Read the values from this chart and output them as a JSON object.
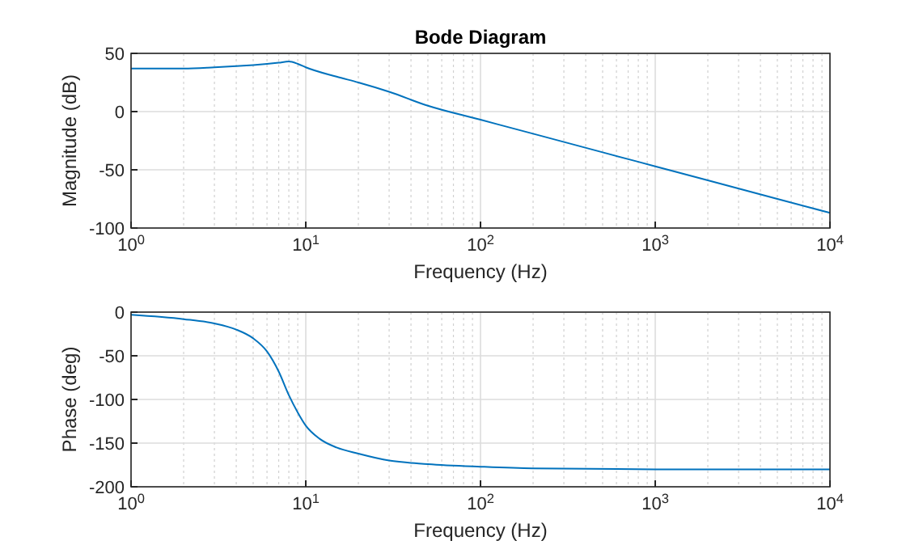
{
  "chart_data": [
    {
      "type": "line",
      "title": "Bode Diagram",
      "xlabel": "Frequency (Hz)",
      "ylabel": "Magnitude (dB)",
      "log": "x",
      "grid": true,
      "xlim": [
        1,
        10000
      ],
      "xticks": [
        {
          "value": 1,
          "label": "10$^{0}$"
        },
        {
          "value": 10,
          "label": "10$^{1}$"
        },
        {
          "value": 100,
          "label": "10$^{2}$"
        },
        {
          "value": 1000,
          "label": "10$^{3}$"
        },
        {
          "value": 10000,
          "label": "10$^{4}$"
        }
      ],
      "ylim": [
        -100,
        50
      ],
      "yticks": [
        -100,
        -50,
        0,
        50
      ],
      "x": [
        1,
        2,
        3,
        4,
        5,
        6,
        7,
        8,
        9,
        10,
        15,
        20,
        30,
        50,
        100,
        200,
        500,
        1000,
        2000,
        5000,
        10000
      ],
      "series": [
        {
          "color": "#0072bd",
          "values": [
            37,
            37,
            38,
            39,
            40,
            41,
            42,
            43,
            41,
            38,
            30,
            25,
            17,
            5,
            -7,
            -19,
            -35,
            -47,
            -59,
            -75,
            -87
          ]
        }
      ]
    },
    {
      "type": "line",
      "xlabel": "Frequency (Hz)",
      "ylabel": "Phase (deg)",
      "log": "x",
      "grid": true,
      "xlim": [
        1,
        10000
      ],
      "xticks": [
        {
          "value": 1,
          "label": "10$^{0}$"
        },
        {
          "value": 10,
          "label": "10$^{1}$"
        },
        {
          "value": 100,
          "label": "10$^{2}$"
        },
        {
          "value": 1000,
          "label": "10$^{3}$"
        },
        {
          "value": 10000,
          "label": "10$^{4}$"
        }
      ],
      "ylim": [
        -200,
        0
      ],
      "yticks": [
        -200,
        -150,
        -100,
        -50,
        0
      ],
      "x": [
        1,
        2,
        3,
        4,
        5,
        6,
        7,
        8,
        9,
        10,
        12,
        15,
        20,
        30,
        50,
        100,
        200,
        1000,
        10000
      ],
      "series": [
        {
          "color": "#0072bd",
          "values": [
            -3,
            -8,
            -13,
            -20,
            -30,
            -45,
            -68,
            -95,
            -115,
            -130,
            -145,
            -155,
            -162,
            -170,
            -174,
            -177,
            -179,
            -180,
            -180
          ]
        }
      ]
    }
  ]
}
